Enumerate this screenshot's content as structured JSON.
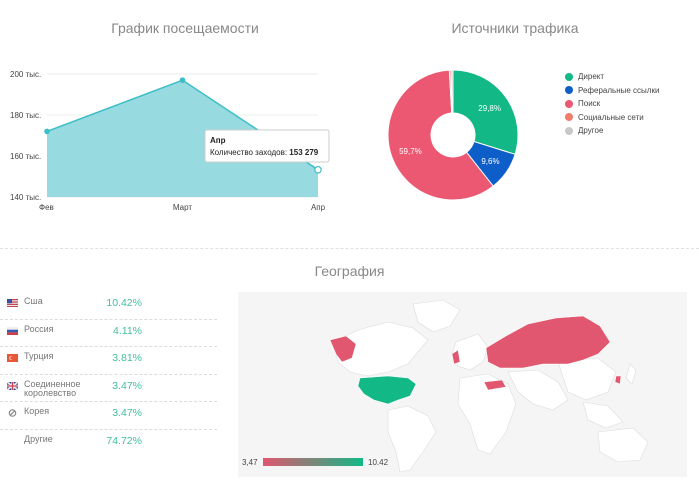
{
  "visits": {
    "title": "График посещаемости",
    "tooltip": {
      "label": "Апр",
      "metric": "Количество заходов:",
      "value": "153 279"
    }
  },
  "traffic": {
    "title": "Источники трафика",
    "legend": [
      {
        "label": "Директ",
        "color": "#12b886"
      },
      {
        "label": "Реферальные ссылки",
        "color": "#0e5ec9"
      },
      {
        "label": "Поиск",
        "color": "#ec5772"
      },
      {
        "label": "Социальные сети",
        "color": "#f27b6a"
      },
      {
        "label": "Другое",
        "color": "#c8c8c8"
      }
    ]
  },
  "geo": {
    "title": "География",
    "rows": [
      {
        "name": "Сша",
        "value": "10.42%",
        "flag": "us-flag-icon"
      },
      {
        "name": "Россия",
        "value": "4.11%",
        "flag": "ru-flag-icon"
      },
      {
        "name": "Турция",
        "value": "3.81%",
        "flag": "tr-flag-icon"
      },
      {
        "name": "Соединенное королевство",
        "value": "3.47%",
        "flag": "uk-flag-icon"
      },
      {
        "name": "Корея",
        "value": "3.47%",
        "flag": "no-flag-icon"
      },
      {
        "name": "Другие",
        "value": "74.72%",
        "flag": ""
      }
    ],
    "scale": {
      "min": "3,47",
      "max": "10.42"
    }
  },
  "chart_data": [
    {
      "type": "area",
      "title": "График посещаемости",
      "categories": [
        "Фев",
        "Март",
        "Апр"
      ],
      "values": [
        172000,
        197000,
        153279
      ],
      "yticks": [
        "200 тыс.",
        "180 тыс.",
        "160 тыс.",
        "140 тыс."
      ],
      "ylim": [
        140000,
        200000
      ],
      "color": "#97dbe0",
      "line_color": "#3dbdc7"
    },
    {
      "type": "pie",
      "title": "Источники трафика",
      "labels": [
        "Директ",
        "Реферальные ссылки",
        "Поиск",
        "Социальные сети",
        "Другое"
      ],
      "values": [
        29.8,
        9.6,
        59.7,
        0.4,
        0.5
      ],
      "data_labels": [
        "29,8%",
        "9,6%",
        "59,7%",
        "",
        ""
      ],
      "colors": [
        "#12b886",
        "#0e5ec9",
        "#ec5772",
        "#f27b6a",
        "#c8c8c8"
      ],
      "donut": true
    }
  ]
}
